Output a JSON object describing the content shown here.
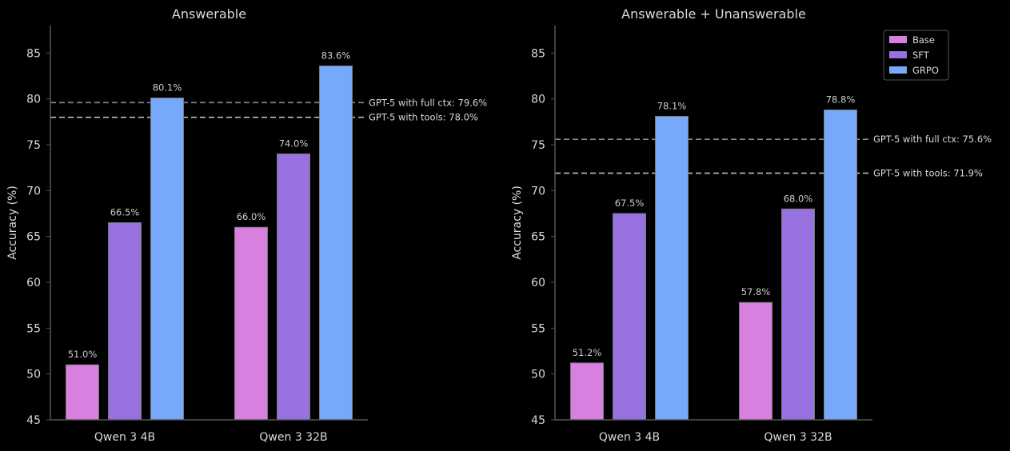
{
  "colors": {
    "background": "#000000",
    "axis": "#555555",
    "text": "#d9d9d9",
    "label_text": "#cccccc",
    "ref_full_ctx": "#8a8a8a",
    "ref_tools": "#bdbdbd"
  },
  "chart_data": [
    {
      "type": "bar",
      "title": "Answerable",
      "xlabel": "",
      "ylabel": "Accuracy (%)",
      "ylim": [
        45,
        88
      ],
      "yticks": [
        "45",
        "50",
        "55",
        "60",
        "65",
        "70",
        "75",
        "80",
        "85"
      ],
      "grid": false,
      "categories": [
        "Qwen 3 4B",
        "Qwen 3 32B"
      ],
      "series": [
        {
          "name": "Base",
          "color": "#d97fe0",
          "values": [
            51.0,
            66.0
          ],
          "labels": [
            "51.0%",
            "66.0%"
          ]
        },
        {
          "name": "SFT",
          "color": "#9771e0",
          "values": [
            66.5,
            74.0
          ],
          "labels": [
            "66.5%",
            "74.0%"
          ]
        },
        {
          "name": "GRPO",
          "color": "#77a9fb",
          "values": [
            80.1,
            83.6
          ],
          "labels": [
            "80.1%",
            "83.6%"
          ]
        }
      ],
      "reference_lines": [
        {
          "value": 79.6,
          "label": "GPT-5 with full ctx: 79.6%",
          "style": "full_ctx"
        },
        {
          "value": 78.0,
          "label": "GPT-5 with tools: 78.0%",
          "style": "tools"
        }
      ]
    },
    {
      "type": "bar",
      "title": "Answerable + Unanswerable",
      "xlabel": "",
      "ylabel": "Accuracy (%)",
      "ylim": [
        45,
        88
      ],
      "yticks": [
        "45",
        "50",
        "55",
        "60",
        "65",
        "70",
        "75",
        "80",
        "85"
      ],
      "grid": false,
      "categories": [
        "Qwen 3 4B",
        "Qwen 3 32B"
      ],
      "series": [
        {
          "name": "Base",
          "color": "#d97fe0",
          "values": [
            51.2,
            57.8
          ],
          "labels": [
            "51.2%",
            "57.8%"
          ]
        },
        {
          "name": "SFT",
          "color": "#9771e0",
          "values": [
            67.5,
            68.0
          ],
          "labels": [
            "67.5%",
            "68.0%"
          ]
        },
        {
          "name": "GRPO",
          "color": "#77a9fb",
          "values": [
            78.1,
            78.8
          ],
          "labels": [
            "78.1%",
            "78.8%"
          ]
        }
      ],
      "reference_lines": [
        {
          "value": 75.6,
          "label": "GPT-5 with full ctx: 75.6%",
          "style": "full_ctx"
        },
        {
          "value": 71.9,
          "label": "GPT-5 with tools: 71.9%",
          "style": "tools"
        }
      ],
      "legend": {
        "position": "top-right",
        "entries": [
          {
            "name": "Base",
            "color": "#d97fe0"
          },
          {
            "name": "SFT",
            "color": "#9771e0"
          },
          {
            "name": "GRPO",
            "color": "#77a9fb"
          }
        ]
      }
    }
  ]
}
